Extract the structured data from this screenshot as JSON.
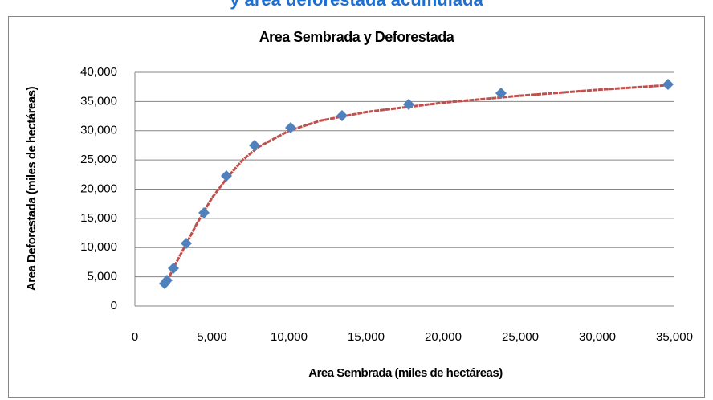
{
  "heading": "y área deforestada acumulada",
  "chart_data": {
    "type": "scatter",
    "title": "Area Sembrada y Deforestada",
    "x_label": "Area Sembrada (miles de hectáreas)",
    "y_label": "Area Deforestada (miles de hectáreas)",
    "series": [
      {
        "color": "#4f81bd",
        "marker": "diamond",
        "x": [
          1927,
          2083,
          2500,
          3333,
          4479,
          5938,
          7760,
          10104,
          13438,
          17760,
          23750,
          34583
        ],
        "values": [
          3849,
          4399,
          6460,
          10722,
          15945,
          22268,
          27491,
          30515,
          32577,
          34502,
          36426,
          37938
        ]
      },
      {
        "color": "#c0504d",
        "marker": "line",
        "x": [
          1927,
          2500,
          3000,
          4000,
          5000,
          6000,
          7000,
          8000,
          10000,
          12000,
          15000,
          20000,
          25000,
          30000,
          34583
        ],
        "values": [
          3300,
          6500,
          9000,
          14000,
          18500,
          22000,
          25000,
          27200,
          30000,
          31700,
          33200,
          34800,
          36000,
          37000,
          37800
        ]
      }
    ],
    "xlim": [
      0,
      35000
    ],
    "xticks": [
      0,
      {
        "value": 5000,
        "label": "5,000"
      },
      {
        "value": 10000,
        "label": "10,000"
      },
      {
        "value": 15000,
        "label": "15,000"
      },
      {
        "value": 20000,
        "label": "20,000"
      },
      {
        "value": 25000,
        "label": "25,000"
      },
      {
        "value": 30000,
        "label": "30,000"
      },
      {
        "value": 35000,
        "label": "35,000"
      }
    ],
    "ylim": [
      0,
      40000
    ],
    "yticks": [
      0,
      {
        "value": 5000,
        "label": "5,000"
      },
      {
        "value": 10000,
        "label": "10,000"
      },
      {
        "value": 15000,
        "label": "15,000"
      },
      {
        "value": 20000,
        "label": "20,000"
      },
      {
        "value": 25000,
        "label": "25,000"
      },
      {
        "value": 30000,
        "label": "30,000"
      },
      {
        "value": 35000,
        "label": "35,000"
      },
      {
        "value": 40000,
        "label": "40,000"
      }
    ],
    "grid": true
  }
}
